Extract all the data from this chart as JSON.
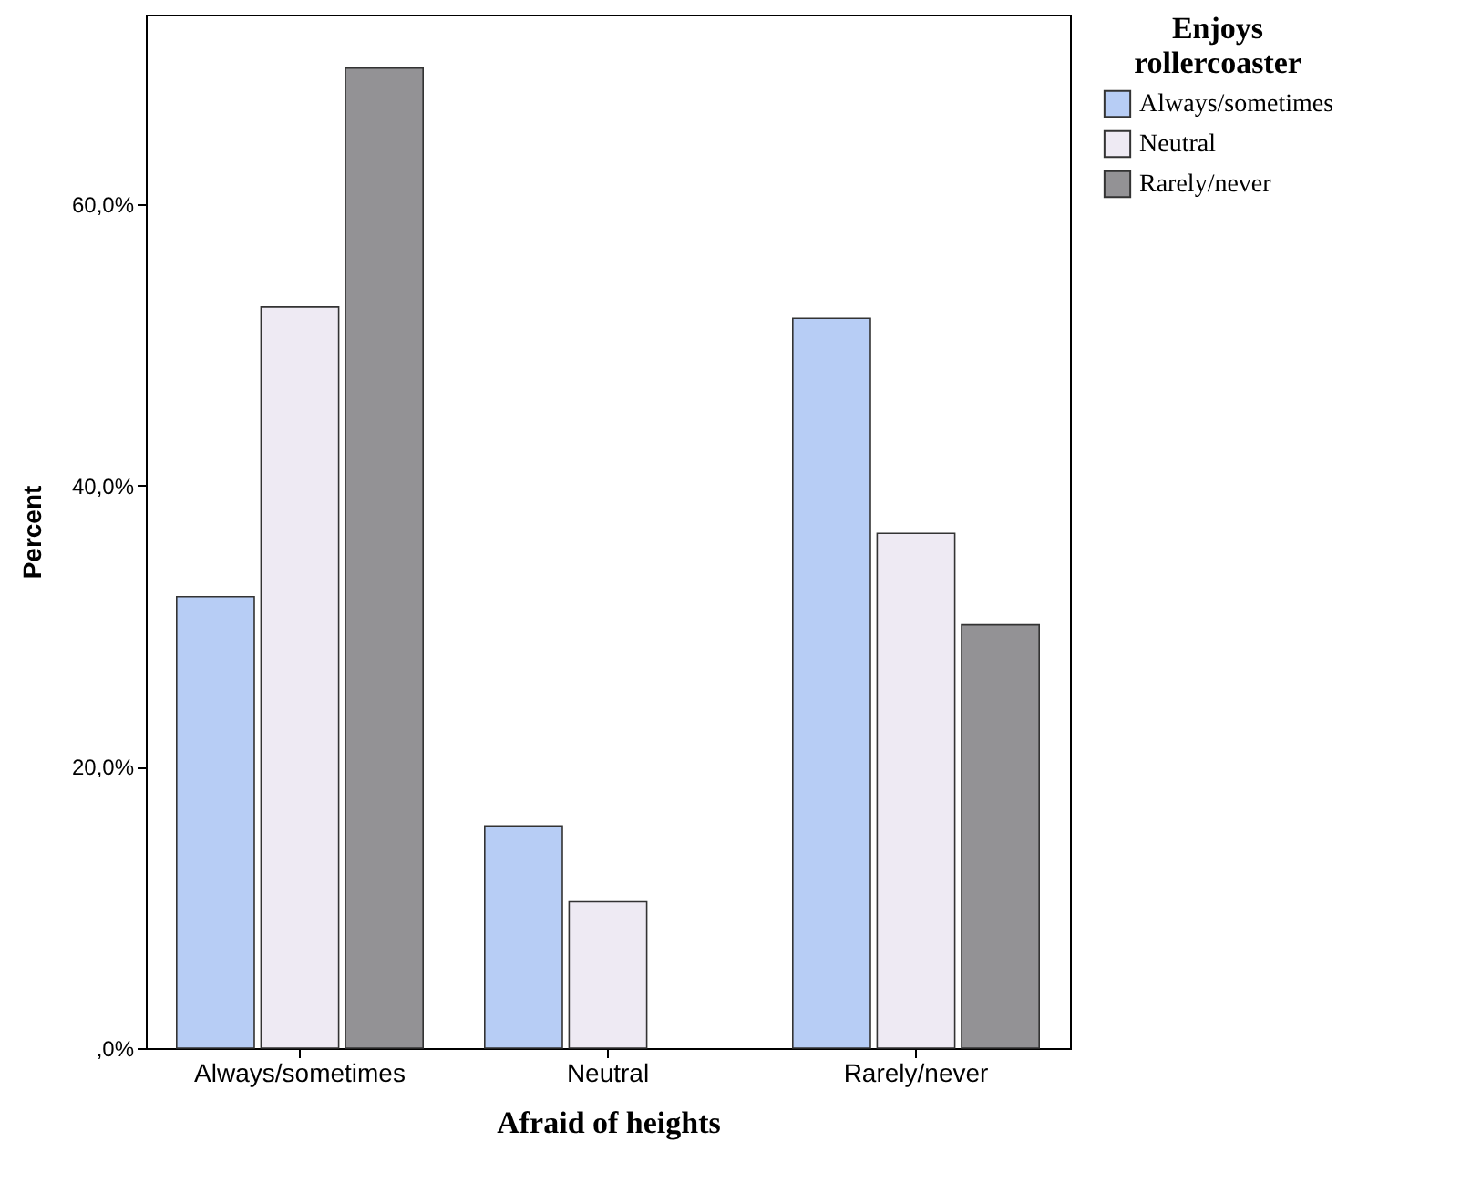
{
  "chart_data": {
    "type": "bar",
    "xlabel": "Afraid of heights",
    "ylabel": "Percent",
    "legend_title": "Enjoys rollercoaster",
    "legend": "right",
    "grid": false,
    "categories": [
      "Always/sometimes",
      "Neutral",
      "Rarely/never"
    ],
    "series": [
      {
        "name": "Always/sometimes",
        "color": "#b7cdf5",
        "values": [
          32.1,
          15.8,
          51.9
        ]
      },
      {
        "name": "Neutral",
        "color": "#eeeaf3",
        "values": [
          52.7,
          10.4,
          36.6
        ]
      },
      {
        "name": "Rarely/never",
        "color": "#939295",
        "values": [
          69.7,
          null,
          30.1
        ]
      }
    ],
    "ylim": [
      0,
      73.5
    ],
    "yticks": [
      {
        "value": 0,
        "label": ",0%"
      },
      {
        "value": 20,
        "label": "20,0%"
      },
      {
        "value": 40,
        "label": "40,0%"
      },
      {
        "value": 60,
        "label": "60,0%"
      }
    ]
  }
}
